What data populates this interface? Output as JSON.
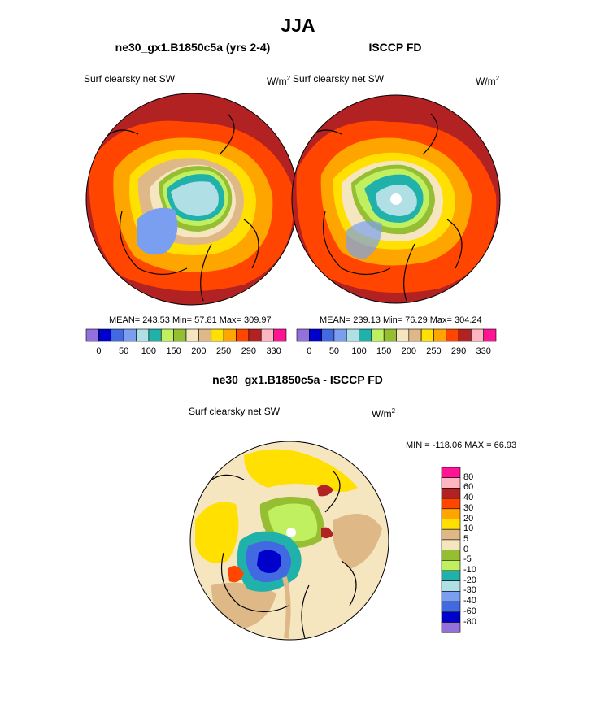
{
  "title": "JJA",
  "panels": [
    {
      "title": "ne30_gx1.B1850c5a (yrs 2-4)",
      "variable": "Surf clearsky net SW",
      "units": "W/m",
      "units_exp": "2",
      "stats": "MEAN= 243.53  Min=  57.81  Max= 309.97"
    },
    {
      "title": "ISCCP FD",
      "variable": "Surf clearsky net SW",
      "units": "W/m",
      "units_exp": "2",
      "stats": "MEAN= 239.13  Min=  76.29  Max= 304.24"
    }
  ],
  "top_colorbar": {
    "labels": [
      "0",
      "50",
      "100",
      "150",
      "200",
      "250",
      "290",
      "330"
    ],
    "colors": [
      "#9370DB",
      "#0000CD",
      "#4169E1",
      "#7B9FF0",
      "#B0E0E6",
      "#20B2AA",
      "#C0F060",
      "#96BE32",
      "#F5E6C0",
      "#DEB887",
      "#FFE000",
      "#FFA500",
      "#FF4500",
      "#B22222",
      "#FFB6C1",
      "#FF1493"
    ]
  },
  "diff_panel": {
    "title": "ne30_gx1.B1850c5a - ISCCP FD",
    "variable": "Surf clearsky net SW",
    "units": "W/m",
    "units_exp": "2",
    "stats": "MIN = -118.06 MAX =  66.93",
    "colorbar_labels": [
      "80",
      "60",
      "40",
      "30",
      "20",
      "10",
      "5",
      "0",
      "-5",
      "-10",
      "-20",
      "-30",
      "-40",
      "-60",
      "-80"
    ],
    "colors": [
      "#FF1493",
      "#FFB6C1",
      "#B22222",
      "#FF4500",
      "#FFA500",
      "#FFE000",
      "#DEB887",
      "#F5E6C0",
      "#96BE32",
      "#C0F060",
      "#20B2AA",
      "#B0E0E6",
      "#7B9FF0",
      "#4169E1",
      "#0000CD",
      "#9370DB"
    ]
  }
}
